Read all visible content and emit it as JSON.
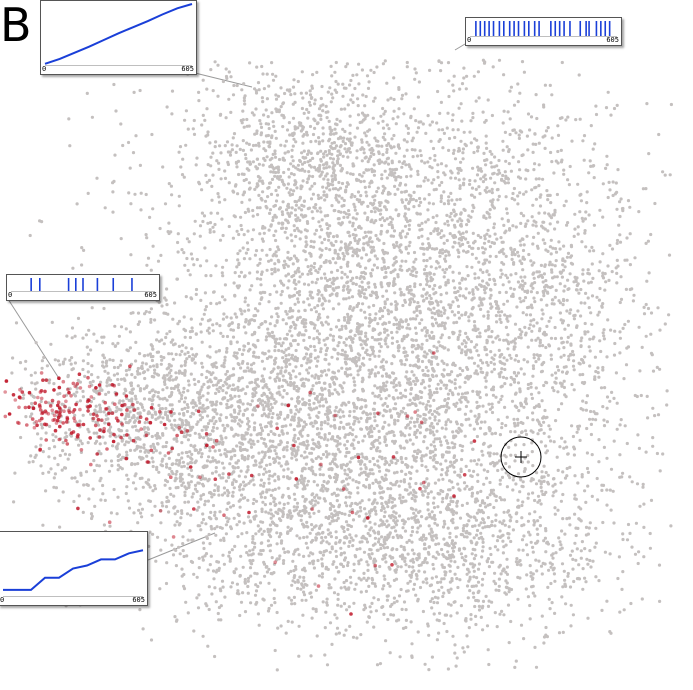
{
  "panel": {
    "label": "B"
  },
  "chart_data": {
    "type": "scatter",
    "title": "",
    "xlabel": "",
    "ylabel": "",
    "grid": false,
    "legend": "none",
    "colors": {
      "background_points": "#c4c0bf",
      "highlight_points": "#c0182a",
      "inset_series": "#1a3fd8",
      "link_lines": "#9a9a9a"
    },
    "insets": [
      {
        "type": "line",
        "position": "top-left",
        "x_ticks": [
          "0",
          "605"
        ],
        "series": [
          {
            "values": [
              0.02,
              0.1,
              0.2,
              0.3,
              0.41,
              0.52,
              0.62,
              0.72,
              0.83,
              0.93,
              1.0
            ]
          }
        ]
      },
      {
        "type": "event-raster",
        "position": "top-right",
        "x_ticks": [
          "0",
          "605"
        ],
        "events": [
          0.04,
          0.07,
          0.1,
          0.13,
          0.16,
          0.2,
          0.23,
          0.27,
          0.3,
          0.33,
          0.37,
          0.4,
          0.44,
          0.47,
          0.55,
          0.58,
          0.61,
          0.64,
          0.68,
          0.75,
          0.79,
          0.81,
          0.86,
          0.89,
          0.92,
          0.95
        ]
      },
      {
        "type": "event-raster",
        "position": "middle-left",
        "x_ticks": [
          "0",
          "605"
        ],
        "events": [
          0.14,
          0.2,
          0.4,
          0.45,
          0.5,
          0.6,
          0.71,
          0.84
        ]
      },
      {
        "type": "line",
        "position": "bottom-left",
        "x_ticks": [
          "0",
          "605"
        ],
        "series": [
          {
            "values": [
              0.1,
              0.1,
              0.1,
              0.3,
              0.3,
              0.45,
              0.5,
              0.6,
              0.6,
              0.7,
              0.75
            ]
          }
        ]
      }
    ]
  }
}
